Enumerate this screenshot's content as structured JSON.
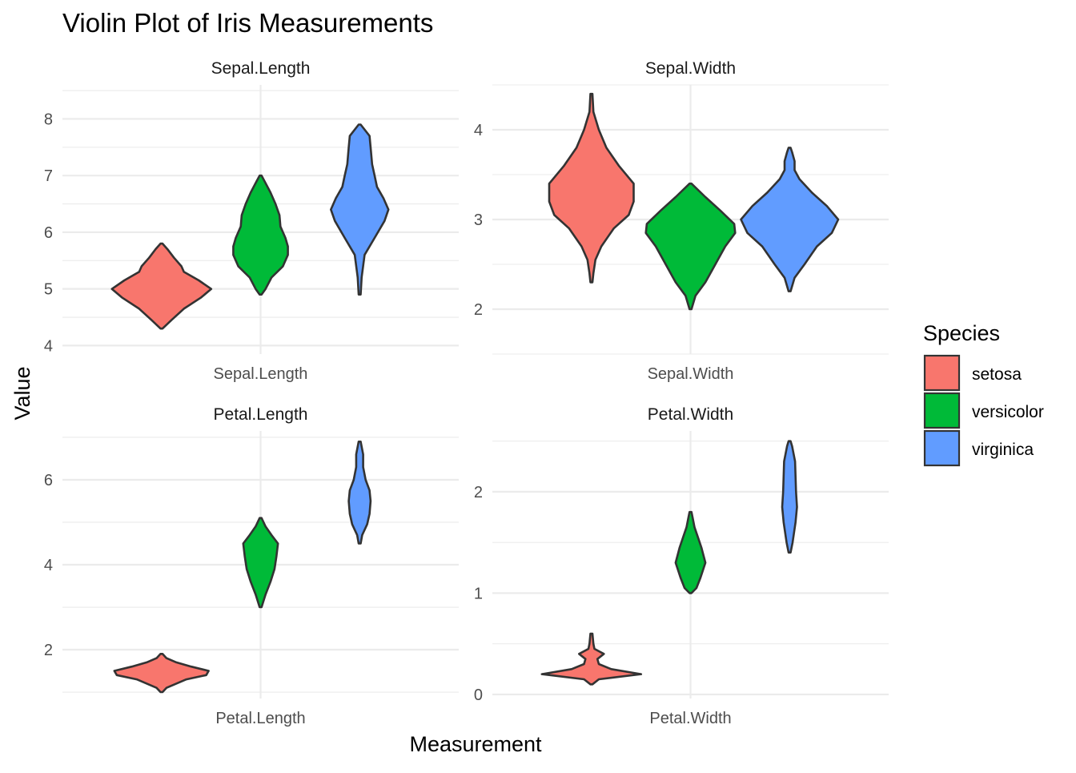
{
  "chart_data": {
    "type": "violin",
    "title": "Violin Plot of Iris Measurements",
    "xlabel": "Measurement",
    "ylabel": "Value",
    "legend": {
      "title": "Species",
      "placement": "right",
      "items": [
        {
          "label": "setosa",
          "color": "#F8766D"
        },
        {
          "label": "versicolor",
          "color": "#00BA38"
        },
        {
          "label": "virginica",
          "color": "#619CFF"
        }
      ]
    },
    "facets": [
      {
        "strip": "Sepal.Length",
        "x_tick": "Sepal.Length",
        "y_ticks": [
          "4",
          "5",
          "6",
          "7",
          "8"
        ],
        "ylim": [
          3.85,
          8.6
        ],
        "violins": [
          {
            "species": "setosa",
            "min": 4.3,
            "max": 5.8,
            "profile": [
              [
                4.3,
                0.02
              ],
              [
                4.45,
                0.2
              ],
              [
                4.65,
                0.45
              ],
              [
                4.85,
                0.8
              ],
              [
                5.0,
                1.0
              ],
              [
                5.15,
                0.75
              ],
              [
                5.3,
                0.45
              ],
              [
                5.4,
                0.4
              ],
              [
                5.55,
                0.25
              ],
              [
                5.7,
                0.12
              ],
              [
                5.8,
                0.02
              ]
            ]
          },
          {
            "species": "versicolor",
            "min": 4.9,
            "max": 7.0,
            "profile": [
              [
                4.9,
                0.02
              ],
              [
                5.0,
                0.1
              ],
              [
                5.2,
                0.22
              ],
              [
                5.4,
                0.45
              ],
              [
                5.6,
                0.55
              ],
              [
                5.75,
                0.55
              ],
              [
                5.9,
                0.5
              ],
              [
                6.1,
                0.4
              ],
              [
                6.3,
                0.38
              ],
              [
                6.5,
                0.3
              ],
              [
                6.7,
                0.2
              ],
              [
                6.9,
                0.08
              ],
              [
                7.0,
                0.02
              ]
            ]
          },
          {
            "species": "virginica",
            "min": 4.9,
            "max": 7.9,
            "profile": [
              [
                4.9,
                0.02
              ],
              [
                5.2,
                0.04
              ],
              [
                5.6,
                0.1
              ],
              [
                5.9,
                0.3
              ],
              [
                6.2,
                0.5
              ],
              [
                6.4,
                0.58
              ],
              [
                6.6,
                0.48
              ],
              [
                6.8,
                0.35
              ],
              [
                7.0,
                0.3
              ],
              [
                7.2,
                0.25
              ],
              [
                7.5,
                0.22
              ],
              [
                7.7,
                0.2
              ],
              [
                7.9,
                0.02
              ]
            ]
          }
        ]
      },
      {
        "strip": "Sepal.Width",
        "x_tick": "Sepal.Width",
        "y_ticks": [
          "2",
          "3",
          "4"
        ],
        "ylim": [
          1.5,
          4.5
        ],
        "violins": [
          {
            "species": "setosa",
            "min": 2.3,
            "max": 4.4,
            "profile": [
              [
                2.3,
                0.02
              ],
              [
                2.4,
                0.04
              ],
              [
                2.55,
                0.08
              ],
              [
                2.7,
                0.2
              ],
              [
                2.9,
                0.45
              ],
              [
                3.05,
                0.75
              ],
              [
                3.2,
                0.85
              ],
              [
                3.4,
                0.85
              ],
              [
                3.6,
                0.55
              ],
              [
                3.8,
                0.3
              ],
              [
                4.0,
                0.15
              ],
              [
                4.2,
                0.04
              ],
              [
                4.4,
                0.02
              ]
            ]
          },
          {
            "species": "versicolor",
            "min": 2.0,
            "max": 3.4,
            "profile": [
              [
                2.0,
                0.02
              ],
              [
                2.15,
                0.1
              ],
              [
                2.3,
                0.3
              ],
              [
                2.5,
                0.5
              ],
              [
                2.7,
                0.7
              ],
              [
                2.85,
                0.9
              ],
              [
                2.95,
                0.88
              ],
              [
                3.1,
                0.6
              ],
              [
                3.25,
                0.3
              ],
              [
                3.4,
                0.02
              ]
            ]
          },
          {
            "species": "virginica",
            "min": 2.2,
            "max": 3.8,
            "profile": [
              [
                2.2,
                0.02
              ],
              [
                2.35,
                0.1
              ],
              [
                2.5,
                0.3
              ],
              [
                2.7,
                0.55
              ],
              [
                2.85,
                0.85
              ],
              [
                3.0,
                0.98
              ],
              [
                3.15,
                0.75
              ],
              [
                3.3,
                0.45
              ],
              [
                3.45,
                0.2
              ],
              [
                3.55,
                0.1
              ],
              [
                3.65,
                0.1
              ],
              [
                3.75,
                0.05
              ],
              [
                3.8,
                0.02
              ]
            ]
          }
        ]
      },
      {
        "strip": "Petal.Length",
        "x_tick": "Petal.Length",
        "y_ticks": [
          "2",
          "4",
          "6"
        ],
        "ylim": [
          0.85,
          7.15
        ],
        "violins": [
          {
            "species": "setosa",
            "min": 1.0,
            "max": 1.9,
            "profile": [
              [
                1.0,
                0.02
              ],
              [
                1.1,
                0.1
              ],
              [
                1.3,
                0.5
              ],
              [
                1.4,
                0.9
              ],
              [
                1.5,
                0.95
              ],
              [
                1.6,
                0.6
              ],
              [
                1.7,
                0.3
              ],
              [
                1.8,
                0.1
              ],
              [
                1.9,
                0.02
              ]
            ]
          },
          {
            "species": "versicolor",
            "min": 3.0,
            "max": 5.1,
            "profile": [
              [
                3.0,
                0.02
              ],
              [
                3.3,
                0.1
              ],
              [
                3.6,
                0.2
              ],
              [
                3.9,
                0.28
              ],
              [
                4.2,
                0.32
              ],
              [
                4.5,
                0.35
              ],
              [
                4.7,
                0.22
              ],
              [
                4.9,
                0.1
              ],
              [
                5.1,
                0.02
              ]
            ]
          },
          {
            "species": "virginica",
            "min": 4.5,
            "max": 6.9,
            "profile": [
              [
                4.5,
                0.02
              ],
              [
                4.7,
                0.05
              ],
              [
                4.95,
                0.15
              ],
              [
                5.2,
                0.2
              ],
              [
                5.5,
                0.22
              ],
              [
                5.75,
                0.2
              ],
              [
                6.0,
                0.12
              ],
              [
                6.3,
                0.07
              ],
              [
                6.6,
                0.07
              ],
              [
                6.9,
                0.02
              ]
            ]
          }
        ]
      },
      {
        "strip": "Petal.Width",
        "x_tick": "Petal.Width",
        "y_ticks": [
          "0",
          "1",
          "2"
        ],
        "ylim": [
          -0.04,
          2.6
        ],
        "violins": [
          {
            "species": "setosa",
            "min": 0.1,
            "max": 0.6,
            "profile": [
              [
                0.1,
                0.02
              ],
              [
                0.15,
                0.15
              ],
              [
                0.2,
                1.0
              ],
              [
                0.25,
                0.4
              ],
              [
                0.3,
                0.15
              ],
              [
                0.35,
                0.12
              ],
              [
                0.4,
                0.25
              ],
              [
                0.45,
                0.06
              ],
              [
                0.5,
                0.04
              ],
              [
                0.55,
                0.03
              ],
              [
                0.6,
                0.02
              ]
            ]
          },
          {
            "species": "versicolor",
            "min": 1.0,
            "max": 1.8,
            "profile": [
              [
                1.0,
                0.02
              ],
              [
                1.05,
                0.12
              ],
              [
                1.15,
                0.2
              ],
              [
                1.3,
                0.3
              ],
              [
                1.45,
                0.22
              ],
              [
                1.55,
                0.15
              ],
              [
                1.65,
                0.08
              ],
              [
                1.75,
                0.04
              ],
              [
                1.8,
                0.02
              ]
            ]
          },
          {
            "species": "virginica",
            "min": 1.4,
            "max": 2.5,
            "profile": [
              [
                1.4,
                0.02
              ],
              [
                1.5,
                0.06
              ],
              [
                1.7,
                0.12
              ],
              [
                1.85,
                0.15
              ],
              [
                2.0,
                0.13
              ],
              [
                2.15,
                0.12
              ],
              [
                2.3,
                0.11
              ],
              [
                2.45,
                0.05
              ],
              [
                2.5,
                0.02
              ]
            ]
          }
        ]
      }
    ]
  }
}
